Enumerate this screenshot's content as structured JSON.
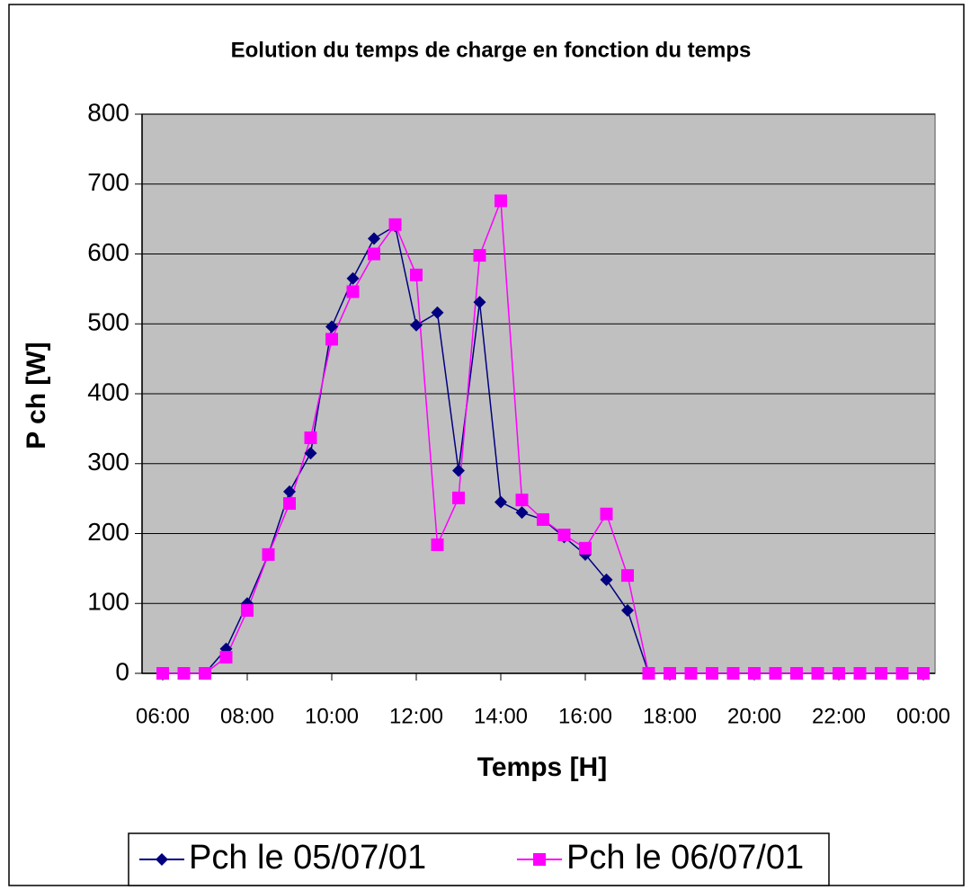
{
  "chart_data": {
    "type": "line",
    "title": "Eolution du temps de charge en fonction du temps",
    "x_label": "Temps [H]",
    "y_label": "P ch [W]",
    "categories": [
      "06:00",
      null,
      null,
      null,
      "08:00",
      null,
      null,
      null,
      "10:00",
      null,
      null,
      null,
      "12:00",
      null,
      null,
      null,
      "14:00",
      null,
      null,
      null,
      "16:00",
      null,
      null,
      null,
      "18:00",
      null,
      null,
      null,
      "20:00",
      null,
      null,
      null,
      "22:00",
      null,
      null,
      null,
      "00:00"
    ],
    "series": [
      {
        "name": "Pch le 05/07/01",
        "color": "#000080",
        "marker": "diamond",
        "values": [
          0,
          0,
          0,
          35,
          100,
          170,
          260,
          315,
          496,
          565,
          622,
          640,
          498,
          516,
          290,
          531,
          245,
          230,
          220,
          195,
          170,
          134,
          90,
          0,
          0,
          0,
          0,
          0,
          0,
          0,
          0,
          0,
          0,
          0,
          0,
          0,
          0
        ]
      },
      {
        "name": "Pch le 06/07/01",
        "color": "#ff00ff",
        "marker": "square",
        "values": [
          0,
          0,
          0,
          23,
          90,
          170,
          243,
          337,
          478,
          546,
          600,
          642,
          570,
          184,
          251,
          598,
          676,
          248,
          220,
          198,
          179,
          228,
          140,
          0,
          0,
          0,
          0,
          0,
          0,
          0,
          0,
          0,
          0,
          0,
          0,
          0,
          0
        ]
      }
    ],
    "ylim": [
      0,
      800
    ],
    "yticks": [
      0,
      100,
      200,
      300,
      400,
      500,
      600,
      700,
      800
    ],
    "grid": true,
    "legend": "bottom",
    "plot_background": "#c0c0c0"
  }
}
